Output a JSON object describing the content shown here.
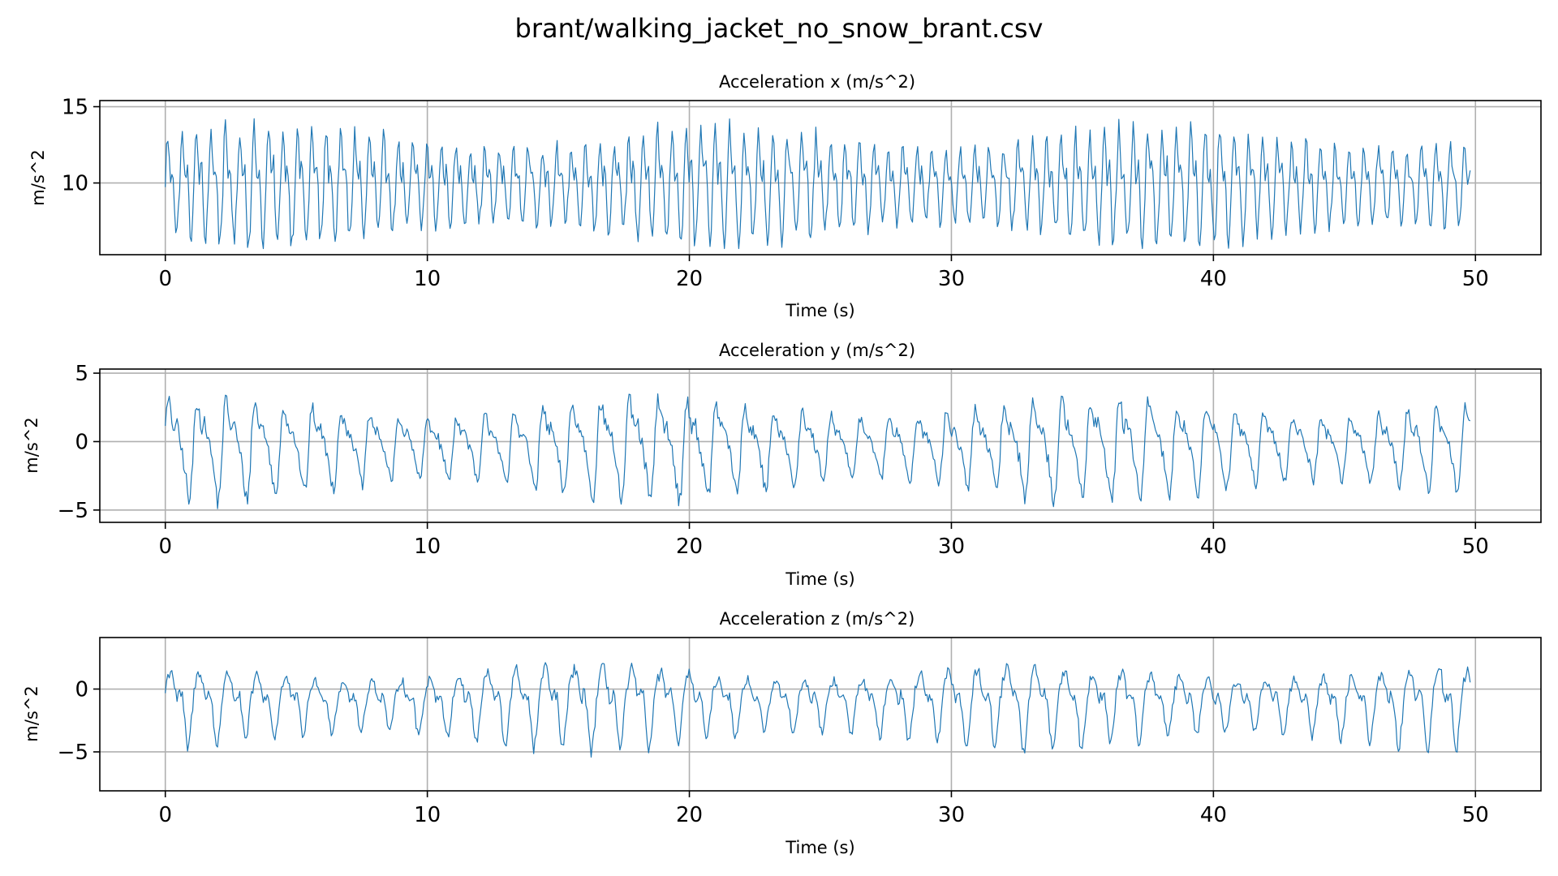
{
  "chart_data": {
    "title": "brant/walking_jacket_no_snow_brant.csv",
    "type": "line",
    "colors": {
      "series": "#1f77b4",
      "grid": "#b0b0b0"
    },
    "grid": true,
    "panels": [
      {
        "title": "Acceleration x (m/s^2)",
        "xlabel": "Time (s)",
        "ylabel": "m/s^2",
        "xlim": [
          -2.5,
          52.5
        ],
        "ylim": [
          5.3,
          15.4
        ],
        "xticks": [
          0,
          10,
          20,
          30,
          40,
          50
        ],
        "yticks": [
          10,
          15
        ],
        "signal": {
          "t_start": 0,
          "t_end": 49.8,
          "samples": 1000,
          "mean": 9.9,
          "amplitude": 3.8,
          "step_period_s": 0.55,
          "min": 5.7,
          "max": 15.0
        }
      },
      {
        "title": "Acceleration y (m/s^2)",
        "xlabel": "Time (s)",
        "ylabel": "m/s^2",
        "xlim": [
          -2.5,
          52.5
        ],
        "ylim": [
          -5.9,
          5.3
        ],
        "xticks": [
          0,
          10,
          20,
          30,
          40,
          50
        ],
        "yticks": [
          -5,
          0,
          5
        ],
        "signal": {
          "t_start": 0,
          "t_end": 49.8,
          "samples": 1000,
          "mean": -0.3,
          "amplitude": 3.6,
          "step_period_s": 1.1,
          "min": -5.5,
          "max": 4.8
        }
      },
      {
        "title": "Acceleration z (m/s^2)",
        "xlabel": "Time (s)",
        "ylabel": "m/s^2",
        "xlim": [
          -2.5,
          52.5
        ],
        "ylim": [
          -8.1,
          4.1
        ],
        "xticks": [
          0,
          10,
          20,
          30,
          40,
          50
        ],
        "yticks": [
          -5,
          0
        ],
        "signal": {
          "t_start": 0,
          "t_end": 49.8,
          "samples": 1000,
          "mean": -1.0,
          "amplitude": 3.2,
          "step_period_s": 1.1,
          "min": -7.6,
          "max": 3.7
        }
      }
    ]
  }
}
